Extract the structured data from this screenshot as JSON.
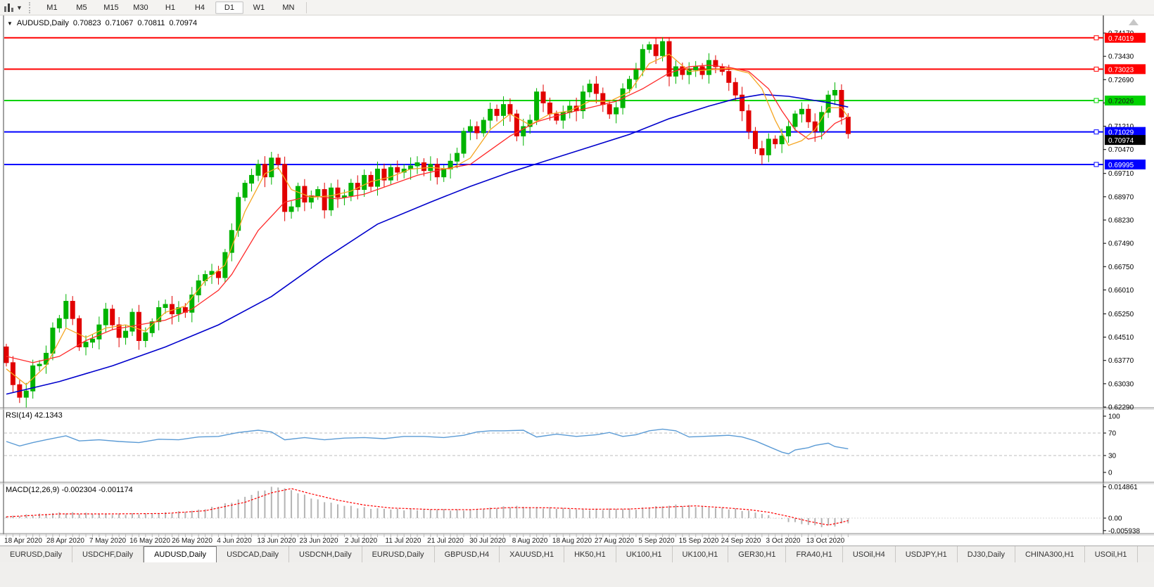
{
  "toolbar": {
    "chart_type_icon": "indicator-chart-icon",
    "timeframes": [
      "M1",
      "M5",
      "M15",
      "M30",
      "H1",
      "H4",
      "D1",
      "W1",
      "MN"
    ],
    "active_timeframe": "D1"
  },
  "title": {
    "symbol": "AUDUSD,Daily",
    "open": "0.70823",
    "high": "0.71067",
    "low": "0.70811",
    "close": "0.70974"
  },
  "indicator_labels": {
    "rsi": "RSI(14) 42.1343",
    "macd": "MACD(12,26,9) -0.002304 -0.001174"
  },
  "tabs": {
    "active_index": 2,
    "items": [
      "EURUSD,Daily",
      "USDCHF,Daily",
      "AUDUSD,Daily",
      "USDCAD,Daily",
      "USDCNH,Daily",
      "EURUSD,Daily",
      "GBPUSD,H4",
      "XAUUSD,H1",
      "HK50,H1",
      "UK100,H1",
      "UK100,H1",
      "GER30,H1",
      "FRA40,H1",
      "USOil,H4",
      "USDJPY,H1",
      "DJ30,Daily",
      "CHINA300,H1",
      "USOil,H1"
    ]
  },
  "colors": {
    "bull": "#00b300",
    "bear": "#e10000",
    "ma_fast": "#f5a623",
    "ma_mid": "#ff2a2a",
    "ma_slow": "#0000cc",
    "rsi_line": "#5b9bd5",
    "hist": "#b4b4b4",
    "signal": "#ff0000",
    "hline_red": "#ff0000",
    "hline_green": "#00d200",
    "hline_blue": "#0000ff",
    "axis_text": "#000000",
    "grid_dash": "#bdbdbd",
    "frame": "#8a8a8a"
  },
  "chart_data": {
    "type": "candlestick",
    "symbol": "AUDUSD",
    "timeframe": "Daily",
    "x_labels": [
      "18 Apr 2020",
      "28 Apr 2020",
      "7 May 2020",
      "16 May 2020",
      "26 May 2020",
      "4 Jun 2020",
      "13 Jun 2020",
      "23 Jun 2020",
      "2 Jul 2020",
      "11 Jul 2020",
      "21 Jul 2020",
      "30 Jul 2020",
      "8 Aug 2020",
      "18 Aug 2020",
      "27 Aug 2020",
      "5 Sep 2020",
      "15 Sep 2020",
      "24 Sep 2020",
      "3 Oct 2020",
      "13 Oct 2020"
    ],
    "y_ticks_main": [
      0.7417,
      0.7343,
      0.7269,
      0.7195,
      0.7121,
      0.7047,
      0.6971,
      0.6897,
      0.6823,
      0.6749,
      0.6675,
      0.6601,
      0.6525,
      0.6451,
      0.6377,
      0.6303,
      0.6229
    ],
    "hlines": [
      {
        "price": 0.74019,
        "label": "0.74019",
        "color_key": "hline_red",
        "text": "#ffffff"
      },
      {
        "price": 0.73023,
        "label": "0.73023",
        "color_key": "hline_red",
        "text": "#ffffff"
      },
      {
        "price": 0.72026,
        "label": "0.72026",
        "color_key": "hline_green",
        "text": "#1a1a1a"
      },
      {
        "price": 0.71029,
        "label": "0.71029",
        "color_key": "hline_blue",
        "text": "#ffffff"
      },
      {
        "price": 0.69995,
        "label": "0.69995",
        "color_key": "hline_blue",
        "text": "#ffffff"
      }
    ],
    "current_price": {
      "value": 0.70974,
      "label": "0.70974",
      "bg": "#000000",
      "text": "#ffffff"
    },
    "first_open": 0.642,
    "clamp_high": 0.7404,
    "closes": [
      0.637,
      0.63,
      0.626,
      0.628,
      0.636,
      0.6365,
      0.64,
      0.648,
      0.651,
      0.6565,
      0.651,
      0.642,
      0.6435,
      0.6445,
      0.649,
      0.654,
      0.649,
      0.645,
      0.647,
      0.653,
      0.644,
      0.6465,
      0.65,
      0.6545,
      0.6555,
      0.6525,
      0.6545,
      0.653,
      0.6585,
      0.663,
      0.665,
      0.666,
      0.664,
      0.672,
      0.679,
      0.6895,
      0.694,
      0.6965,
      0.7,
      0.696,
      0.702,
      0.7,
      0.685,
      0.6865,
      0.693,
      0.688,
      0.69,
      0.692,
      0.6855,
      0.6925,
      0.6895,
      0.69,
      0.694,
      0.692,
      0.6965,
      0.693,
      0.6985,
      0.695,
      0.699,
      0.6975,
      0.6985,
      0.6995,
      0.7005,
      0.698,
      0.7,
      0.696,
      0.6985,
      0.701,
      0.7035,
      0.7105,
      0.712,
      0.71,
      0.714,
      0.7175,
      0.7155,
      0.719,
      0.716,
      0.709,
      0.712,
      0.714,
      0.723,
      0.7195,
      0.716,
      0.714,
      0.7165,
      0.7185,
      0.717,
      0.723,
      0.7255,
      0.7225,
      0.719,
      0.716,
      0.718,
      0.724,
      0.727,
      0.73,
      0.7365,
      0.738,
      0.7345,
      0.739,
      0.728,
      0.731,
      0.7285,
      0.73,
      0.731,
      0.7285,
      0.733,
      0.731,
      0.7295,
      0.726,
      0.722,
      0.717,
      0.7105,
      0.705,
      0.703,
      0.708,
      0.7065,
      0.709,
      0.712,
      0.716,
      0.7175,
      0.7135,
      0.7105,
      0.7165,
      0.722,
      0.7235,
      0.715,
      0.70974
    ],
    "ma_slow_blue": [
      [
        0,
        0.627
      ],
      [
        8,
        0.631
      ],
      [
        16,
        0.636
      ],
      [
        24,
        0.642
      ],
      [
        32,
        0.649
      ],
      [
        40,
        0.658
      ],
      [
        48,
        0.67
      ],
      [
        56,
        0.681
      ],
      [
        64,
        0.688
      ],
      [
        70,
        0.693
      ],
      [
        76,
        0.6975
      ],
      [
        82,
        0.7015
      ],
      [
        88,
        0.7055
      ],
      [
        94,
        0.7095
      ],
      [
        100,
        0.7145
      ],
      [
        106,
        0.7185
      ],
      [
        110,
        0.7208
      ],
      [
        114,
        0.7222
      ],
      [
        118,
        0.7216
      ],
      [
        121,
        0.7206
      ],
      [
        124,
        0.7196
      ],
      [
        127,
        0.7182
      ]
    ],
    "ma_mid_red": [
      [
        0,
        0.639
      ],
      [
        4,
        0.637
      ],
      [
        8,
        0.639
      ],
      [
        12,
        0.644
      ],
      [
        16,
        0.6475
      ],
      [
        20,
        0.649
      ],
      [
        24,
        0.6505
      ],
      [
        28,
        0.654
      ],
      [
        32,
        0.66
      ],
      [
        34,
        0.665
      ],
      [
        38,
        0.679
      ],
      [
        42,
        0.688
      ],
      [
        46,
        0.69
      ],
      [
        50,
        0.689
      ],
      [
        54,
        0.6905
      ],
      [
        58,
        0.6935
      ],
      [
        62,
        0.6965
      ],
      [
        66,
        0.6985
      ],
      [
        70,
        0.7
      ],
      [
        72,
        0.703
      ],
      [
        76,
        0.709
      ],
      [
        80,
        0.7135
      ],
      [
        84,
        0.716
      ],
      [
        88,
        0.718
      ],
      [
        92,
        0.72
      ],
      [
        96,
        0.724
      ],
      [
        100,
        0.729
      ],
      [
        103,
        0.731
      ],
      [
        106,
        0.7315
      ],
      [
        109,
        0.7308
      ],
      [
        112,
        0.7295
      ],
      [
        115,
        0.724
      ],
      [
        117,
        0.717
      ],
      [
        119,
        0.711
      ],
      [
        121,
        0.708
      ],
      [
        123,
        0.709
      ],
      [
        125,
        0.713
      ],
      [
        127,
        0.715
      ]
    ],
    "ma_fast_orange": [
      [
        0,
        0.635
      ],
      [
        3,
        0.63
      ],
      [
        6,
        0.636
      ],
      [
        9,
        0.648
      ],
      [
        12,
        0.645
      ],
      [
        15,
        0.648
      ],
      [
        18,
        0.649
      ],
      [
        21,
        0.647
      ],
      [
        24,
        0.653
      ],
      [
        27,
        0.655
      ],
      [
        30,
        0.663
      ],
      [
        33,
        0.668
      ],
      [
        36,
        0.685
      ],
      [
        39,
        0.697
      ],
      [
        41,
        0.699
      ],
      [
        43,
        0.692
      ],
      [
        46,
        0.6895
      ],
      [
        49,
        0.69
      ],
      [
        52,
        0.6915
      ],
      [
        55,
        0.6945
      ],
      [
        58,
        0.696
      ],
      [
        61,
        0.6985
      ],
      [
        64,
        0.699
      ],
      [
        67,
        0.6985
      ],
      [
        70,
        0.702
      ],
      [
        73,
        0.711
      ],
      [
        76,
        0.716
      ],
      [
        79,
        0.7125
      ],
      [
        82,
        0.716
      ],
      [
        85,
        0.717
      ],
      [
        88,
        0.72
      ],
      [
        91,
        0.72
      ],
      [
        94,
        0.723
      ],
      [
        97,
        0.732
      ],
      [
        100,
        0.735
      ],
      [
        103,
        0.7295
      ],
      [
        106,
        0.73
      ],
      [
        109,
        0.7305
      ],
      [
        112,
        0.729
      ],
      [
        114,
        0.724
      ],
      [
        116,
        0.714
      ],
      [
        118,
        0.706
      ],
      [
        120,
        0.7075
      ],
      [
        122,
        0.711
      ],
      [
        124,
        0.718
      ],
      [
        126,
        0.718
      ],
      [
        127,
        0.715
      ]
    ],
    "rsi": {
      "value": 42.1343,
      "ticks": [
        100,
        70,
        30,
        0
      ],
      "dashed_levels": [
        70,
        30
      ],
      "points": [
        [
          0,
          55
        ],
        [
          2,
          47
        ],
        [
          4,
          53
        ],
        [
          6,
          58
        ],
        [
          9,
          65
        ],
        [
          11,
          56
        ],
        [
          14,
          58
        ],
        [
          17,
          55
        ],
        [
          20,
          53
        ],
        [
          23,
          59
        ],
        [
          26,
          58
        ],
        [
          29,
          63
        ],
        [
          32,
          64
        ],
        [
          35,
          71
        ],
        [
          38,
          75
        ],
        [
          40,
          72
        ],
        [
          42,
          58
        ],
        [
          45,
          62
        ],
        [
          48,
          58
        ],
        [
          51,
          61
        ],
        [
          54,
          62
        ],
        [
          57,
          60
        ],
        [
          60,
          64
        ],
        [
          63,
          64
        ],
        [
          66,
          62
        ],
        [
          69,
          66
        ],
        [
          71,
          72
        ],
        [
          73,
          74
        ],
        [
          75,
          74
        ],
        [
          78,
          75
        ],
        [
          80,
          63
        ],
        [
          83,
          68
        ],
        [
          86,
          64
        ],
        [
          89,
          67
        ],
        [
          91,
          71
        ],
        [
          93,
          64
        ],
        [
          95,
          67
        ],
        [
          97,
          74
        ],
        [
          99,
          77
        ],
        [
          101,
          74
        ],
        [
          103,
          63
        ],
        [
          105,
          64
        ],
        [
          107,
          65
        ],
        [
          109,
          66
        ],
        [
          111,
          63
        ],
        [
          113,
          56
        ],
        [
          115,
          46
        ],
        [
          117,
          36
        ],
        [
          118,
          33
        ],
        [
          119,
          40
        ],
        [
          121,
          44
        ],
        [
          122,
          48
        ],
        [
          124,
          52
        ],
        [
          125,
          46
        ],
        [
          126,
          44
        ],
        [
          127,
          42
        ]
      ]
    },
    "macd": {
      "main_value": -0.002304,
      "signal_value": -0.001174,
      "ticks": [
        {
          "v": 0.014861,
          "label": "0.014861"
        },
        {
          "v": 0.0,
          "label": "0.00"
        },
        {
          "v": -0.005938,
          "label": "-0.005938"
        }
      ],
      "hist_anchors": [
        [
          0,
          0.0008
        ],
        [
          4,
          0.0016
        ],
        [
          8,
          0.0026
        ],
        [
          12,
          0.0022
        ],
        [
          16,
          0.0018
        ],
        [
          20,
          0.002
        ],
        [
          24,
          0.0024
        ],
        [
          28,
          0.0034
        ],
        [
          31,
          0.005
        ],
        [
          34,
          0.0075
        ],
        [
          36,
          0.01
        ],
        [
          38,
          0.0125
        ],
        [
          40,
          0.0145
        ],
        [
          41,
          0.0148
        ],
        [
          43,
          0.0132
        ],
        [
          45,
          0.0108
        ],
        [
          47,
          0.0085
        ],
        [
          50,
          0.0065
        ],
        [
          53,
          0.005
        ],
        [
          56,
          0.0045
        ],
        [
          59,
          0.0041
        ],
        [
          62,
          0.004
        ],
        [
          65,
          0.0041
        ],
        [
          68,
          0.0038
        ],
        [
          71,
          0.0041
        ],
        [
          74,
          0.005
        ],
        [
          77,
          0.0056
        ],
        [
          80,
          0.005
        ],
        [
          83,
          0.0047
        ],
        [
          86,
          0.0042
        ],
        [
          89,
          0.0041
        ],
        [
          92,
          0.0044
        ],
        [
          95,
          0.0043
        ],
        [
          98,
          0.0054
        ],
        [
          101,
          0.0062
        ],
        [
          104,
          0.0056
        ],
        [
          107,
          0.0049
        ],
        [
          110,
          0.0042
        ],
        [
          113,
          0.0028
        ],
        [
          115,
          0.0012
        ],
        [
          117,
          -0.0008
        ],
        [
          119,
          -0.0022
        ],
        [
          121,
          -0.0032
        ],
        [
          123,
          -0.004
        ],
        [
          125,
          -0.0036
        ],
        [
          126,
          -0.0028
        ],
        [
          127,
          -0.0023
        ]
      ],
      "signal_anchors": [
        [
          0,
          0.0006
        ],
        [
          8,
          0.002
        ],
        [
          16,
          0.002
        ],
        [
          24,
          0.0022
        ],
        [
          30,
          0.0035
        ],
        [
          36,
          0.0075
        ],
        [
          40,
          0.012
        ],
        [
          43,
          0.014
        ],
        [
          46,
          0.0115
        ],
        [
          50,
          0.0085
        ],
        [
          54,
          0.0062
        ],
        [
          58,
          0.0048
        ],
        [
          64,
          0.0041
        ],
        [
          70,
          0.004
        ],
        [
          76,
          0.005
        ],
        [
          82,
          0.0049
        ],
        [
          88,
          0.0042
        ],
        [
          94,
          0.0043
        ],
        [
          100,
          0.0053
        ],
        [
          104,
          0.0058
        ],
        [
          108,
          0.005
        ],
        [
          112,
          0.004
        ],
        [
          115,
          0.0028
        ],
        [
          118,
          0.0008
        ],
        [
          121,
          -0.0015
        ],
        [
          124,
          -0.0033
        ],
        [
          126,
          -0.002
        ],
        [
          127,
          -0.0012
        ]
      ]
    }
  }
}
